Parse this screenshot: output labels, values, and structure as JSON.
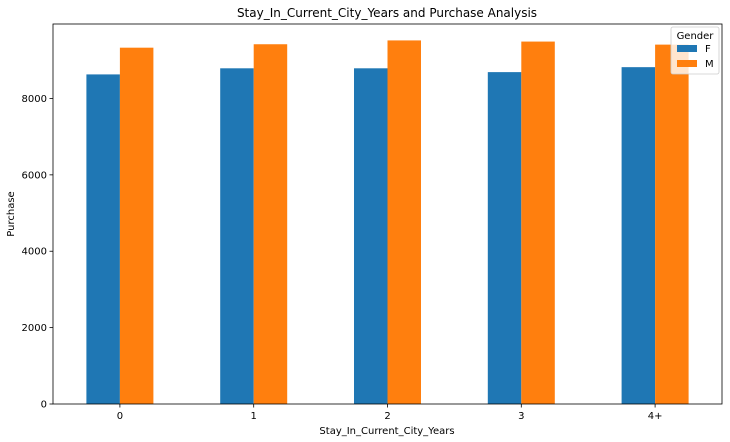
{
  "chart_data": {
    "type": "bar",
    "title": "Stay_In_Current_City_Years and Purchase Analysis",
    "xlabel": "Stay_In_Current_City_Years",
    "ylabel": "Purchase",
    "categories": [
      "0",
      "1",
      "2",
      "3",
      "4+"
    ],
    "series": [
      {
        "name": "F",
        "color": "#1f77b4",
        "values": [
          8630,
          8790,
          8790,
          8690,
          8820
        ]
      },
      {
        "name": "M",
        "color": "#ff7f0e",
        "values": [
          9330,
          9420,
          9520,
          9490,
          9410
        ]
      }
    ],
    "ylim": [
      0,
      9950
    ],
    "yticks": [
      0,
      2000,
      4000,
      6000,
      8000
    ],
    "legend": {
      "title": "Gender",
      "position": "top-right"
    },
    "grid": false
  }
}
